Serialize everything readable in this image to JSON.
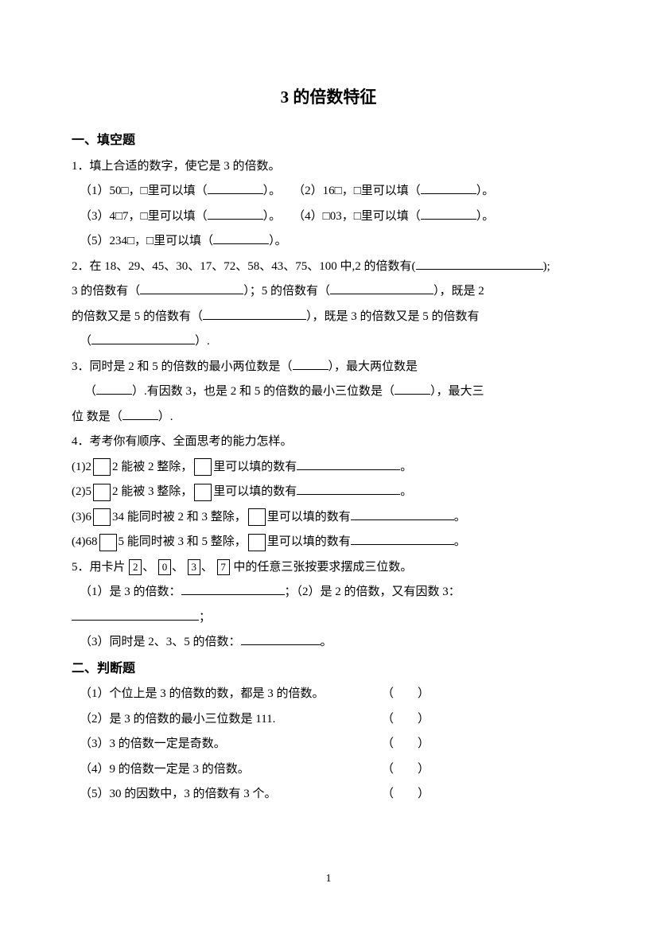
{
  "title": "3 的倍数特征",
  "section1": {
    "header": "一、填空题",
    "q1": {
      "stem": "1．填上合适的数字，使它是 3 的倍数。",
      "p1a": "（1）50□，□里可以填（",
      "p1b": "）。",
      "p2a": "（2）16□，□里可以填（",
      "p2b": "）。",
      "p3a": "（3）4□7，□里可以填（",
      "p3b": "）。",
      "p4a": "（4）□03，□里可以填（",
      "p4b": "）。",
      "p5a": "（5）234□，□里可以填（",
      "p5b": "）。"
    },
    "q2": {
      "t1": "2．在 18、29、45、30、17、72、58、43、75、100 中,2 的倍数有(",
      "t2": ");",
      "t3": "3 的倍数有（",
      "t4": "）；5 的倍数有（",
      "t5": "），既是 2",
      "t6": "的倍数又是 5 的倍数有（",
      "t7": "），既是 3 的倍数又是 5 的倍数有",
      "t8": "（",
      "t9": "）."
    },
    "q3": {
      "t1": "3．同时是 2 和 5 的倍数的最小两位数是（",
      "t2": "），最大两位数是",
      "t3": "（",
      "t4": "）.有因数 3，也是 2 和 5 的倍数的最小三位数是（",
      "t5": "），最大三",
      "t6": "位 数是（",
      "t7": "）."
    },
    "q4": {
      "stem": "4．考考你有顺序、全面思考的能力怎样。",
      "p1a": "(1)2",
      "p1b": "2 能被 2 整除，",
      "p1c": "里可以填的数有",
      "p1d": "。",
      "p2a": "(2)5",
      "p2b": "2 能被 3 整除，",
      "p2c": "里可以填的数有",
      "p2d": "。",
      "p3a": "(3)6",
      "p3b": "34 能同时被 2 和 3 整除，",
      "p3c": "里可以填的数有",
      "p3d": "。",
      "p4a": "(4)68",
      "p4b": "5 能同时被 3 和 5 整除，",
      "p4c": "里可以填的数有",
      "p4d": "。"
    },
    "q5": {
      "stem_a": "5．用卡片",
      "cards": [
        "2",
        "0",
        "3",
        "7"
      ],
      "stem_b": "中的任意三张按要求摆成三位数。",
      "p1a": "（1）是 3 的倍数：",
      "p1b": "；（2）是 2 的倍数，又有因数 3：",
      "p2a": "；",
      "p3a": "（3）同时是 2、3、5 的倍数：",
      "p3b": "。",
      "sep": "、"
    }
  },
  "section2": {
    "header": "二、判断题",
    "items": [
      "（1）个位上是 3 的倍数的数，都是 3 的倍数。",
      "（2）是 3 的倍数的最小三位数是 111.",
      "（3）3 的倍数一定是奇数。",
      "（4）9 的倍数一定是 3 的倍数。",
      "（5）30 的因数中，3 的倍数有 3 个。"
    ],
    "paren": "（　　）"
  },
  "pageNumber": "1"
}
